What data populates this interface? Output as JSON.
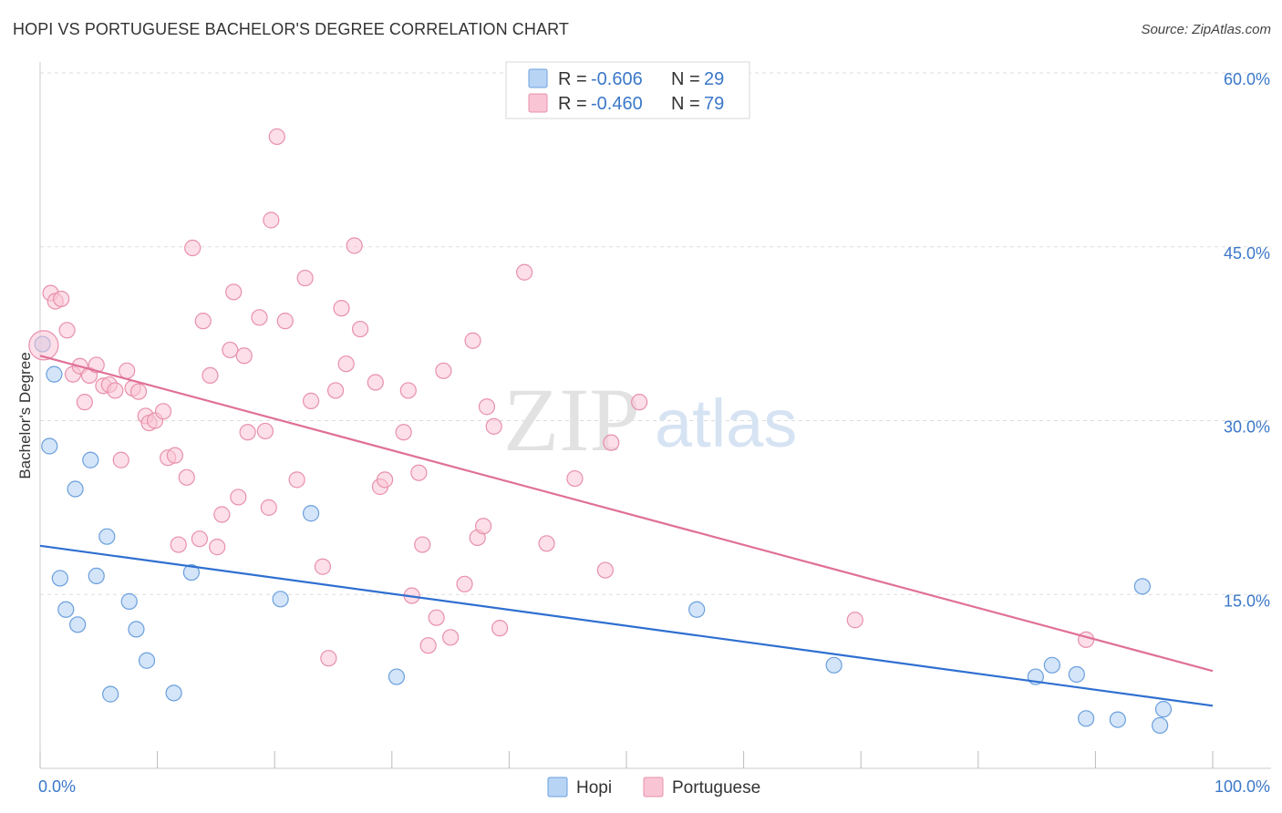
{
  "title": "HOPI VS PORTUGUESE BACHELOR'S DEGREE CORRELATION CHART",
  "source": "Source: ZipAtlas.com",
  "watermark": {
    "zip": "ZIP",
    "atlas": "atlas"
  },
  "legend": {
    "rows": [
      {
        "r_label": "R =",
        "r_value": "-0.606",
        "n_label": "N =",
        "n_value": "29"
      },
      {
        "r_label": "R =",
        "r_value": "-0.460",
        "n_label": "N =",
        "n_value": "79"
      }
    ]
  },
  "bottom_legend": {
    "hopi": "Hopi",
    "portuguese": "Portuguese"
  },
  "colors": {
    "hopi_fill": "#b8d4f5",
    "hopi_stroke": "#6a9fdd",
    "hopi_line": "#2f6fd0",
    "portuguese_fill": "#f9c5d5",
    "portuguese_stroke": "#e890ab",
    "portuguese_line": "#e07096",
    "tick": "#3b78c9",
    "grid": "#dddddd"
  },
  "chart_data": {
    "type": "scatter",
    "title": "HOPI VS PORTUGUESE BACHELOR'S DEGREE CORRELATION CHART",
    "xlabel": "",
    "ylabel": "Bachelor's Degree",
    "xlim": [
      0,
      100
    ],
    "ylim": [
      0,
      60
    ],
    "x_tick_labels": [
      "0.0%",
      "100.0%"
    ],
    "y_ticks": [
      15,
      30,
      45,
      60
    ],
    "y_tick_labels": [
      "15.0%",
      "30.0%",
      "45.0%",
      "60.0%"
    ],
    "grid": true,
    "series": [
      {
        "name": "Hopi",
        "r": -0.606,
        "n": 29,
        "trend": {
          "x": [
            0,
            100
          ],
          "y": [
            19.2,
            5.4
          ]
        },
        "points": [
          {
            "x": 0.2,
            "y": 36.6
          },
          {
            "x": 0.8,
            "y": 27.8
          },
          {
            "x": 1.2,
            "y": 34.0
          },
          {
            "x": 1.7,
            "y": 16.4
          },
          {
            "x": 2.2,
            "y": 13.7
          },
          {
            "x": 3.0,
            "y": 24.1
          },
          {
            "x": 3.2,
            "y": 12.4
          },
          {
            "x": 4.3,
            "y": 26.6
          },
          {
            "x": 4.8,
            "y": 16.6
          },
          {
            "x": 5.7,
            "y": 20.0
          },
          {
            "x": 6.0,
            "y": 6.4
          },
          {
            "x": 7.6,
            "y": 14.4
          },
          {
            "x": 8.2,
            "y": 12.0
          },
          {
            "x": 9.1,
            "y": 9.3
          },
          {
            "x": 11.4,
            "y": 6.5
          },
          {
            "x": 12.9,
            "y": 16.9
          },
          {
            "x": 20.5,
            "y": 14.6
          },
          {
            "x": 23.1,
            "y": 22.0
          },
          {
            "x": 30.4,
            "y": 7.9
          },
          {
            "x": 56.0,
            "y": 13.7
          },
          {
            "x": 67.7,
            "y": 8.9
          },
          {
            "x": 84.9,
            "y": 7.9
          },
          {
            "x": 86.3,
            "y": 8.9
          },
          {
            "x": 88.4,
            "y": 8.1
          },
          {
            "x": 89.2,
            "y": 4.3
          },
          {
            "x": 91.9,
            "y": 4.2
          },
          {
            "x": 94.0,
            "y": 15.7
          },
          {
            "x": 95.5,
            "y": 3.7
          },
          {
            "x": 95.8,
            "y": 5.1
          }
        ]
      },
      {
        "name": "Portuguese",
        "r": -0.46,
        "n": 79,
        "trend": {
          "x": [
            0,
            100
          ],
          "y": [
            35.6,
            8.4
          ]
        },
        "points": [
          {
            "x": 0.3,
            "y": 36.5
          },
          {
            "x": 0.9,
            "y": 41.0
          },
          {
            "x": 1.3,
            "y": 40.3
          },
          {
            "x": 1.8,
            "y": 40.5
          },
          {
            "x": 2.3,
            "y": 37.8
          },
          {
            "x": 2.8,
            "y": 34.0
          },
          {
            "x": 3.4,
            "y": 34.7
          },
          {
            "x": 3.8,
            "y": 31.6
          },
          {
            "x": 4.2,
            "y": 33.9
          },
          {
            "x": 4.8,
            "y": 34.8
          },
          {
            "x": 5.4,
            "y": 33.0
          },
          {
            "x": 5.9,
            "y": 33.1
          },
          {
            "x": 6.4,
            "y": 32.6
          },
          {
            "x": 6.9,
            "y": 26.6
          },
          {
            "x": 7.4,
            "y": 34.3
          },
          {
            "x": 7.9,
            "y": 32.8
          },
          {
            "x": 8.4,
            "y": 32.5
          },
          {
            "x": 9.0,
            "y": 30.4
          },
          {
            "x": 9.3,
            "y": 29.8
          },
          {
            "x": 9.8,
            "y": 30.0
          },
          {
            "x": 10.5,
            "y": 30.8
          },
          {
            "x": 10.9,
            "y": 26.8
          },
          {
            "x": 11.5,
            "y": 27.0
          },
          {
            "x": 11.8,
            "y": 19.3
          },
          {
            "x": 12.5,
            "y": 25.1
          },
          {
            "x": 13.0,
            "y": 44.9
          },
          {
            "x": 13.6,
            "y": 19.8
          },
          {
            "x": 13.9,
            "y": 38.6
          },
          {
            "x": 14.5,
            "y": 33.9
          },
          {
            "x": 15.1,
            "y": 19.1
          },
          {
            "x": 15.5,
            "y": 21.9
          },
          {
            "x": 16.2,
            "y": 36.1
          },
          {
            "x": 16.5,
            "y": 41.1
          },
          {
            "x": 16.9,
            "y": 23.4
          },
          {
            "x": 17.4,
            "y": 35.6
          },
          {
            "x": 17.7,
            "y": 29.0
          },
          {
            "x": 18.7,
            "y": 38.9
          },
          {
            "x": 19.2,
            "y": 29.1
          },
          {
            "x": 19.5,
            "y": 22.5
          },
          {
            "x": 19.7,
            "y": 47.3
          },
          {
            "x": 20.2,
            "y": 54.5
          },
          {
            "x": 20.9,
            "y": 38.6
          },
          {
            "x": 21.9,
            "y": 24.9
          },
          {
            "x": 22.6,
            "y": 42.3
          },
          {
            "x": 23.1,
            "y": 31.7
          },
          {
            "x": 24.1,
            "y": 17.4
          },
          {
            "x": 24.6,
            "y": 9.5
          },
          {
            "x": 25.2,
            "y": 32.6
          },
          {
            "x": 25.7,
            "y": 39.7
          },
          {
            "x": 26.1,
            "y": 34.9
          },
          {
            "x": 26.8,
            "y": 45.1
          },
          {
            "x": 27.3,
            "y": 37.9
          },
          {
            "x": 28.6,
            "y": 33.3
          },
          {
            "x": 29.0,
            "y": 24.3
          },
          {
            "x": 29.4,
            "y": 24.9
          },
          {
            "x": 31.0,
            "y": 29.0
          },
          {
            "x": 31.4,
            "y": 32.6
          },
          {
            "x": 31.7,
            "y": 14.9
          },
          {
            "x": 32.3,
            "y": 25.5
          },
          {
            "x": 32.6,
            "y": 19.3
          },
          {
            "x": 33.1,
            "y": 10.6
          },
          {
            "x": 33.8,
            "y": 13.0
          },
          {
            "x": 34.4,
            "y": 34.3
          },
          {
            "x": 35.0,
            "y": 11.3
          },
          {
            "x": 36.2,
            "y": 15.9
          },
          {
            "x": 36.9,
            "y": 36.9
          },
          {
            "x": 37.3,
            "y": 19.9
          },
          {
            "x": 37.8,
            "y": 20.9
          },
          {
            "x": 38.1,
            "y": 31.2
          },
          {
            "x": 38.7,
            "y": 29.5
          },
          {
            "x": 39.2,
            "y": 12.1
          },
          {
            "x": 41.3,
            "y": 42.8
          },
          {
            "x": 43.2,
            "y": 19.4
          },
          {
            "x": 45.6,
            "y": 25.0
          },
          {
            "x": 48.2,
            "y": 17.1
          },
          {
            "x": 48.7,
            "y": 28.1
          },
          {
            "x": 51.1,
            "y": 31.6
          },
          {
            "x": 69.5,
            "y": 12.8
          },
          {
            "x": 89.2,
            "y": 11.1
          }
        ]
      }
    ]
  }
}
